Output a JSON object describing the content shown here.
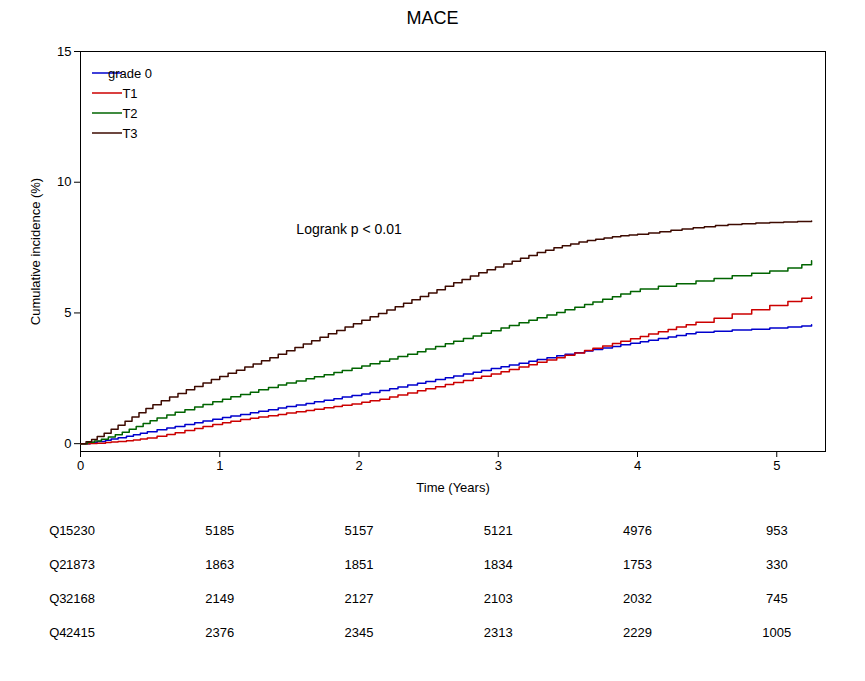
{
  "chart_data": {
    "type": "step",
    "title": "MACE",
    "xlabel": "Time (Years)",
    "ylabel": "Cumulative incidence (%)",
    "xlim": [
      0,
      5.35
    ],
    "ylim": [
      -0.3,
      15
    ],
    "xticks": [
      0,
      1,
      2,
      3,
      4,
      5
    ],
    "yticks": [
      0,
      5,
      10,
      15
    ],
    "grid": false,
    "legend": "upper left",
    "annotations": [
      {
        "text": "Logrank p < 0.01",
        "x": 1.55,
        "y": 8.2
      }
    ],
    "series": [
      {
        "name": "grade 0",
        "color": "#0000CD",
        "x": [
          0.0,
          0.07,
          0.12,
          0.18,
          0.22,
          0.27,
          0.33,
          0.38,
          0.43,
          0.48,
          0.55,
          0.62,
          0.68,
          0.75,
          0.82,
          0.88,
          0.95,
          1.02,
          1.08,
          1.15,
          1.22,
          1.28,
          1.35,
          1.42,
          1.48,
          1.55,
          1.62,
          1.68,
          1.75,
          1.82,
          1.88,
          1.95,
          2.02,
          2.08,
          2.15,
          2.22,
          2.28,
          2.35,
          2.42,
          2.48,
          2.55,
          2.62,
          2.68,
          2.75,
          2.82,
          2.88,
          2.95,
          3.02,
          3.08,
          3.15,
          3.22,
          3.28,
          3.35,
          3.42,
          3.48,
          3.55,
          3.62,
          3.68,
          3.75,
          3.82,
          3.88,
          3.95,
          4.02,
          4.08,
          4.15,
          4.22,
          4.28,
          4.35,
          4.42,
          4.55,
          4.68,
          4.82,
          4.95,
          5.08,
          5.18,
          5.25
        ],
        "values": [
          0.0,
          0.04,
          0.08,
          0.13,
          0.18,
          0.23,
          0.28,
          0.34,
          0.4,
          0.46,
          0.53,
          0.6,
          0.66,
          0.73,
          0.8,
          0.87,
          0.93,
          1.0,
          1.06,
          1.12,
          1.18,
          1.24,
          1.3,
          1.36,
          1.42,
          1.48,
          1.54,
          1.6,
          1.66,
          1.72,
          1.78,
          1.84,
          1.9,
          1.96,
          2.03,
          2.1,
          2.17,
          2.24,
          2.31,
          2.38,
          2.45,
          2.52,
          2.59,
          2.66,
          2.73,
          2.8,
          2.87,
          2.94,
          3.01,
          3.08,
          3.15,
          3.22,
          3.29,
          3.36,
          3.42,
          3.48,
          3.54,
          3.6,
          3.66,
          3.72,
          3.78,
          3.84,
          3.9,
          3.96,
          4.02,
          4.08,
          4.14,
          4.2,
          4.26,
          4.3,
          4.35,
          4.38,
          4.42,
          4.46,
          4.5,
          4.55
        ]
      },
      {
        "name": "T1",
        "color": "#CC0000",
        "x": [
          0.0,
          0.07,
          0.12,
          0.18,
          0.22,
          0.27,
          0.33,
          0.38,
          0.43,
          0.48,
          0.55,
          0.62,
          0.68,
          0.75,
          0.82,
          0.88,
          0.95,
          1.02,
          1.08,
          1.15,
          1.22,
          1.28,
          1.35,
          1.42,
          1.48,
          1.55,
          1.62,
          1.68,
          1.75,
          1.82,
          1.88,
          1.95,
          2.02,
          2.08,
          2.15,
          2.22,
          2.28,
          2.35,
          2.42,
          2.48,
          2.55,
          2.62,
          2.68,
          2.75,
          2.82,
          2.88,
          2.95,
          3.02,
          3.08,
          3.15,
          3.22,
          3.28,
          3.35,
          3.42,
          3.48,
          3.55,
          3.62,
          3.68,
          3.75,
          3.82,
          3.88,
          3.95,
          4.02,
          4.08,
          4.15,
          4.22,
          4.28,
          4.35,
          4.42,
          4.55,
          4.68,
          4.82,
          4.95,
          5.08,
          5.18,
          5.25
        ],
        "values": [
          0.0,
          0.01,
          0.02,
          0.04,
          0.06,
          0.08,
          0.11,
          0.14,
          0.18,
          0.22,
          0.28,
          0.35,
          0.42,
          0.5,
          0.58,
          0.66,
          0.73,
          0.8,
          0.86,
          0.92,
          0.97,
          1.02,
          1.07,
          1.12,
          1.17,
          1.22,
          1.27,
          1.32,
          1.37,
          1.42,
          1.47,
          1.52,
          1.58,
          1.64,
          1.7,
          1.78,
          1.86,
          1.94,
          2.02,
          2.1,
          2.18,
          2.26,
          2.34,
          2.42,
          2.5,
          2.58,
          2.66,
          2.75,
          2.84,
          2.93,
          3.02,
          3.11,
          3.2,
          3.29,
          3.38,
          3.47,
          3.56,
          3.65,
          3.74,
          3.83,
          3.92,
          4.01,
          4.1,
          4.19,
          4.28,
          4.37,
          4.46,
          4.55,
          4.64,
          4.8,
          4.96,
          5.12,
          5.28,
          5.44,
          5.56,
          5.62
        ]
      },
      {
        "name": "T2",
        "color": "#006400",
        "x": [
          0.0,
          0.05,
          0.1,
          0.15,
          0.2,
          0.25,
          0.3,
          0.35,
          0.4,
          0.45,
          0.5,
          0.55,
          0.62,
          0.68,
          0.75,
          0.82,
          0.88,
          0.95,
          1.02,
          1.08,
          1.15,
          1.22,
          1.28,
          1.35,
          1.42,
          1.48,
          1.55,
          1.62,
          1.68,
          1.75,
          1.82,
          1.88,
          1.95,
          2.02,
          2.08,
          2.15,
          2.22,
          2.28,
          2.35,
          2.42,
          2.48,
          2.55,
          2.62,
          2.68,
          2.75,
          2.82,
          2.88,
          2.95,
          3.02,
          3.08,
          3.15,
          3.22,
          3.28,
          3.35,
          3.42,
          3.48,
          3.55,
          3.62,
          3.68,
          3.75,
          3.82,
          3.88,
          3.95,
          4.02,
          4.15,
          4.28,
          4.42,
          4.55,
          4.68,
          4.82,
          4.95,
          5.08,
          5.18,
          5.25
        ],
        "values": [
          0.0,
          0.05,
          0.1,
          0.17,
          0.25,
          0.34,
          0.44,
          0.55,
          0.66,
          0.77,
          0.88,
          0.98,
          1.1,
          1.2,
          1.3,
          1.4,
          1.5,
          1.6,
          1.7,
          1.79,
          1.88,
          1.97,
          2.06,
          2.15,
          2.24,
          2.32,
          2.4,
          2.48,
          2.56,
          2.64,
          2.72,
          2.8,
          2.88,
          2.97,
          3.06,
          3.15,
          3.24,
          3.33,
          3.42,
          3.52,
          3.62,
          3.72,
          3.82,
          3.92,
          4.02,
          4.12,
          4.22,
          4.32,
          4.42,
          4.52,
          4.62,
          4.72,
          4.82,
          4.92,
          5.02,
          5.12,
          5.22,
          5.32,
          5.42,
          5.52,
          5.62,
          5.72,
          5.82,
          5.92,
          6.02,
          6.12,
          6.22,
          6.32,
          6.42,
          6.52,
          6.6,
          6.72,
          6.84,
          7.0
        ]
      },
      {
        "name": "T3",
        "color": "#3D0A00",
        "x": [
          0.0,
          0.04,
          0.08,
          0.12,
          0.17,
          0.22,
          0.27,
          0.32,
          0.37,
          0.42,
          0.47,
          0.52,
          0.58,
          0.64,
          0.7,
          0.76,
          0.82,
          0.88,
          0.94,
          1.0,
          1.06,
          1.12,
          1.18,
          1.24,
          1.3,
          1.36,
          1.42,
          1.48,
          1.54,
          1.6,
          1.66,
          1.72,
          1.78,
          1.84,
          1.9,
          1.96,
          2.02,
          2.08,
          2.14,
          2.2,
          2.26,
          2.32,
          2.38,
          2.44,
          2.5,
          2.56,
          2.62,
          2.68,
          2.74,
          2.8,
          2.86,
          2.92,
          2.98,
          3.04,
          3.1,
          3.16,
          3.22,
          3.28,
          3.34,
          3.4,
          3.46,
          3.52,
          3.58,
          3.64,
          3.7,
          3.76,
          3.82,
          3.88,
          3.94,
          4.0,
          4.08,
          4.16,
          4.24,
          4.32,
          4.4,
          4.48,
          4.56,
          4.65,
          4.75,
          4.85,
          4.95,
          5.05,
          5.15,
          5.25
        ],
        "values": [
          0.0,
          0.07,
          0.16,
          0.27,
          0.4,
          0.55,
          0.7,
          0.86,
          1.02,
          1.18,
          1.34,
          1.49,
          1.64,
          1.78,
          1.92,
          2.06,
          2.19,
          2.32,
          2.45,
          2.57,
          2.69,
          2.81,
          2.93,
          3.05,
          3.17,
          3.29,
          3.42,
          3.55,
          3.68,
          3.81,
          3.94,
          4.07,
          4.2,
          4.33,
          4.46,
          4.59,
          4.72,
          4.85,
          4.98,
          5.11,
          5.24,
          5.37,
          5.5,
          5.63,
          5.76,
          5.89,
          6.02,
          6.15,
          6.28,
          6.41,
          6.54,
          6.65,
          6.76,
          6.87,
          6.98,
          7.09,
          7.2,
          7.31,
          7.4,
          7.49,
          7.57,
          7.64,
          7.71,
          7.77,
          7.82,
          7.87,
          7.91,
          7.95,
          7.98,
          8.01,
          8.06,
          8.11,
          8.16,
          8.21,
          8.26,
          8.3,
          8.34,
          8.38,
          8.41,
          8.44,
          8.46,
          8.48,
          8.5,
          8.52
        ]
      }
    ],
    "at_risk": {
      "x": [
        0,
        1,
        2,
        3,
        4,
        5
      ],
      "rows": [
        {
          "name": "Q1",
          "values": [
            5230,
            5185,
            5157,
            5121,
            4976,
            953
          ]
        },
        {
          "name": "Q2",
          "values": [
            1873,
            1863,
            1851,
            1834,
            1753,
            330
          ]
        },
        {
          "name": "Q3",
          "values": [
            2168,
            2149,
            2127,
            2103,
            2032,
            745
          ]
        },
        {
          "name": "Q4",
          "values": [
            2415,
            2376,
            2345,
            2313,
            2229,
            1005
          ]
        }
      ]
    }
  }
}
